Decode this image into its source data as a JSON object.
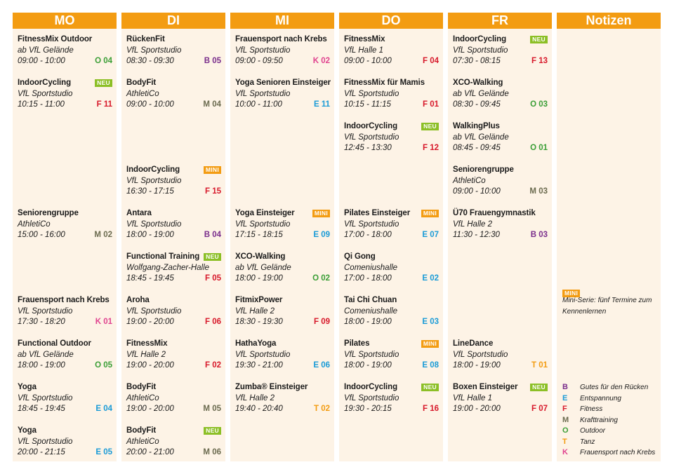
{
  "colors": {
    "header": "#f39c12",
    "column_bg": "#fdf3e6",
    "neu": "#8cbf26",
    "mini": "#f39c12",
    "B": "#7a2e8c",
    "E": "#1a9bd7",
    "F": "#d7182a",
    "M": "#6b6b4f",
    "O": "#3a9e35",
    "T": "#f39c12",
    "K": "#e0438f"
  },
  "days": [
    {
      "name": "MO",
      "courses": [
        {
          "title": "FitnessMix Outdoor",
          "location": "ab VfL Gelände",
          "time": "09:00 - 10:00",
          "code": "O 04",
          "cat": "O",
          "slot": 0
        },
        {
          "title": "IndoorCycling",
          "location": "VfL Sportstudio",
          "time": "10:15 - 11:00",
          "code": "F 11",
          "cat": "F",
          "slot": 1,
          "badge": "NEU"
        },
        {
          "title": "Seniorengruppe",
          "location": "AthletiCo",
          "time": "15:00 - 16:00",
          "code": "M 02",
          "cat": "M",
          "slot": 4
        },
        {
          "title": "Frauensport nach Krebs",
          "location": "VfL Sportstudio",
          "time": "17:30 - 18:20",
          "code": "K 01",
          "cat": "K",
          "slot": 6
        },
        {
          "title": "Functional Outdoor",
          "location": "ab VfL Gelände",
          "time": "18:00 - 19:00",
          "code": "O 05",
          "cat": "O",
          "slot": 7
        },
        {
          "title": "Yoga",
          "location": "VfL Sportstudio",
          "time": "18:45 - 19:45",
          "code": "E 04",
          "cat": "E",
          "slot": 8
        },
        {
          "title": "Yoga",
          "location": "VfL Sportstudio",
          "time": "20:00 - 21:15",
          "code": "E 05",
          "cat": "E",
          "slot": 9
        }
      ]
    },
    {
      "name": "DI",
      "courses": [
        {
          "title": "RückenFit",
          "location": "VfL Sportstudio",
          "time": "08:30 - 09:30",
          "code": "B 05",
          "cat": "B",
          "slot": 0
        },
        {
          "title": "BodyFit",
          "location": "AthletiCo",
          "time": "09:00 - 10:00",
          "code": "M 04",
          "cat": "M",
          "slot": 1
        },
        {
          "title": "IndoorCycling",
          "location": "VfL Sportstudio",
          "time": "16:30 - 17:15",
          "code": "F 15",
          "cat": "F",
          "slot": 3,
          "badge": "MINI"
        },
        {
          "title": "Antara",
          "location": "VfL Sportstudio",
          "time": "18:00 - 19:00",
          "code": "B 04",
          "cat": "B",
          "slot": 4
        },
        {
          "title": "Functional Training",
          "location": "Wolfgang-Zacher-Halle",
          "time": "18:45 - 19:45",
          "code": "F 05",
          "cat": "F",
          "slot": 5,
          "badge": "NEU"
        },
        {
          "title": "Aroha",
          "location": "VfL Sportstudio",
          "time": "19:00 - 20:00",
          "code": "F 06",
          "cat": "F",
          "slot": 6
        },
        {
          "title": "FitnessMix",
          "location": "VfL Halle 2",
          "time": "19:00 - 20:00",
          "code": "F 02",
          "cat": "F",
          "slot": 7
        },
        {
          "title": "BodyFit",
          "location": "AthletiCo",
          "time": "19:00 - 20:00",
          "code": "M 05",
          "cat": "M",
          "slot": 8
        },
        {
          "title": "BodyFit",
          "location": "AthletiCo",
          "time": "20:00 - 21:00",
          "code": "M 06",
          "cat": "M",
          "slot": 9,
          "badge": "NEU"
        }
      ]
    },
    {
      "name": "MI",
      "courses": [
        {
          "title": "Frauensport nach Krebs",
          "location": "VfL Sportstudio",
          "time": "09:00 - 09:50",
          "code": "K 02",
          "cat": "K",
          "slot": 0
        },
        {
          "title": "Yoga Senioren Einsteiger",
          "location": "VfL Sportstudio",
          "time": "10:00 - 11:00",
          "code": "E 11",
          "cat": "E",
          "slot": 1
        },
        {
          "title": "Yoga Einsteiger",
          "location": "VfL Sportstudio",
          "time": "17:15 - 18:15",
          "code": "E 09",
          "cat": "E",
          "slot": 4,
          "badge": "MINI"
        },
        {
          "title": "XCO-Walking",
          "location": "ab VfL Gelände",
          "time": "18:00 - 19:00",
          "code": "O 02",
          "cat": "O",
          "slot": 5
        },
        {
          "title": "FitmixPower",
          "location": "VfL Halle 2",
          "time": "18:30 - 19:30",
          "code": "F 09",
          "cat": "F",
          "slot": 6
        },
        {
          "title": "HathaYoga",
          "location": "VfL Sportstudio",
          "time": "19:30 - 21:00",
          "code": "E 06",
          "cat": "E",
          "slot": 7
        },
        {
          "title": "Zumba® Einsteiger",
          "location": "VfL Halle 2",
          "time": "19:40 - 20:40",
          "code": "T 02",
          "cat": "T",
          "slot": 8
        }
      ]
    },
    {
      "name": "DO",
      "courses": [
        {
          "title": "FitnessMix",
          "location": "VfL Halle 1",
          "time": "09:00 - 10:00",
          "code": "F 04",
          "cat": "F",
          "slot": 0
        },
        {
          "title": "FitnessMix für Mamis",
          "location": "VfL Sportstudio",
          "time": "10:15 - 11:15",
          "code": "F 01",
          "cat": "F",
          "slot": 1
        },
        {
          "title": "IndoorCycling",
          "location": "VfL Sportstudio",
          "time": "12:45 - 13:30",
          "code": "F 12",
          "cat": "F",
          "slot": 2,
          "badge": "NEU"
        },
        {
          "title": "Pilates Einsteiger",
          "location": "VfL Sportstudio",
          "time": "17:00 - 18:00",
          "code": "E 07",
          "cat": "E",
          "slot": 4,
          "badge": "MINI"
        },
        {
          "title": "Qi Gong",
          "location": "Comeniushalle",
          "time": "17:00 - 18:00",
          "code": "E 02",
          "cat": "E",
          "slot": 5
        },
        {
          "title": "Tai Chi Chuan",
          "location": "Comeniushalle",
          "time": "18:00 - 19:00",
          "code": "E 03",
          "cat": "E",
          "slot": 6
        },
        {
          "title": "Pilates",
          "location": "VfL Sportstudio",
          "time": "18:00 - 19:00",
          "code": "E 08",
          "cat": "E",
          "slot": 7,
          "badge": "MINI"
        },
        {
          "title": "IndoorCycling",
          "location": "VfL Sportstudio",
          "time": "19:30 - 20:15",
          "code": "F 16",
          "cat": "F",
          "slot": 8,
          "badge": "NEU"
        }
      ]
    },
    {
      "name": "FR",
      "courses": [
        {
          "title": "IndoorCycling",
          "location": "VfL Sportstudio",
          "time": "07:30 - 08:15",
          "code": "F 13",
          "cat": "F",
          "slot": 0,
          "badge": "NEU"
        },
        {
          "title": "XCO-Walking",
          "location": "ab VfL Gelände",
          "time": "08:30 - 09:45",
          "code": "O 03",
          "cat": "O",
          "slot": 1
        },
        {
          "title": "WalkingPlus",
          "location": "ab VfL Gelände",
          "time": "08:45 - 09:45",
          "code": "O 01",
          "cat": "O",
          "slot": 2
        },
        {
          "title": "Seniorengruppe",
          "location": "AthletiCo",
          "time": "09:00 - 10:00",
          "code": "M 03",
          "cat": "M",
          "slot": 3
        },
        {
          "title": "Ü70 Frauengymnastik",
          "location": "VfL Halle 2",
          "time": "11:30 - 12:30",
          "code": "B 03",
          "cat": "B",
          "slot": 4
        },
        {
          "title": "LineDance",
          "location": "VfL Sportstudio",
          "time": "18:00 - 19:00",
          "code": "T 01",
          "cat": "T",
          "slot": 7
        },
        {
          "title": "Boxen Einsteiger",
          "location": "VfL Halle 1",
          "time": "19:00 - 20:00",
          "code": "F 07",
          "cat": "F",
          "slot": 8,
          "badge": "NEU"
        }
      ]
    }
  ],
  "notes": {
    "title": "Notizen",
    "mini_badge": "MINI",
    "mini_text": "Mini-Serie: fünf Termine zum Kennenlernen",
    "legend": [
      {
        "letter": "B",
        "label": "Gutes für den Rücken"
      },
      {
        "letter": "E",
        "label": "Entspannung"
      },
      {
        "letter": "F",
        "label": "Fitness"
      },
      {
        "letter": "M",
        "label": "Krafttraining"
      },
      {
        "letter": "O",
        "label": "Outdoor"
      },
      {
        "letter": "T",
        "label": "Tanz"
      },
      {
        "letter": "K",
        "label": "Frauensport nach Krebs"
      }
    ]
  }
}
